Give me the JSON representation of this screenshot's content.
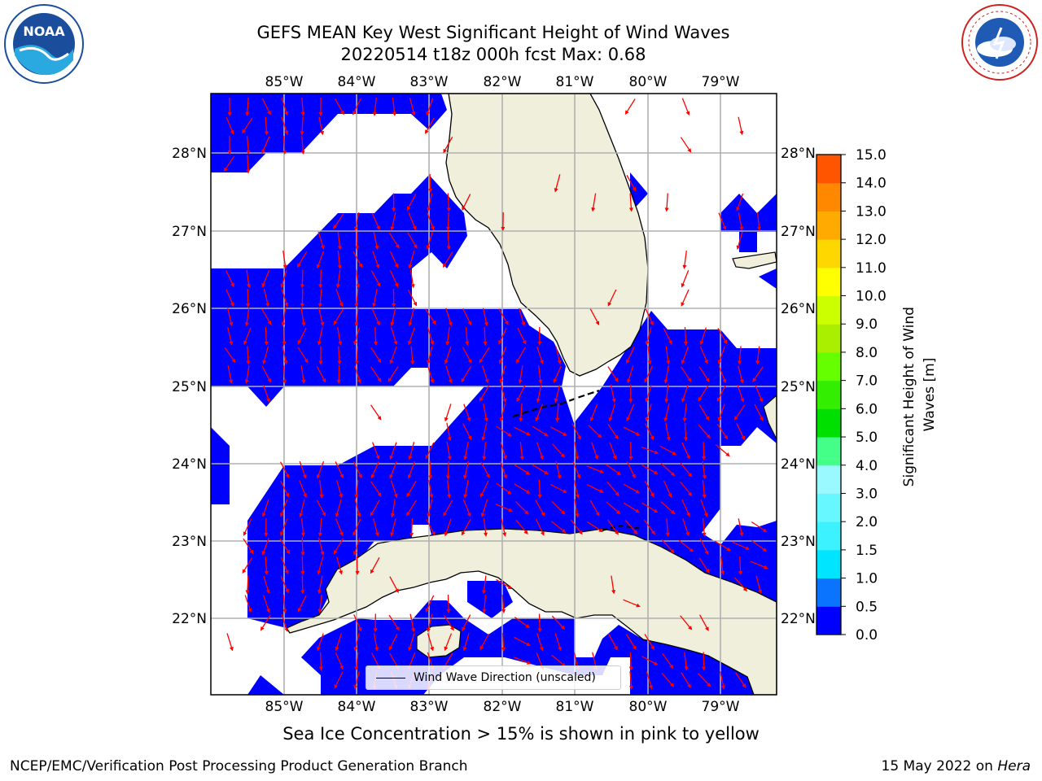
{
  "title": {
    "line1": "GEFS MEAN Key West Significant Height of Wind Waves",
    "line2": "20220514 t18z 000h fcst   Max: 0.68"
  },
  "axes": {
    "lon_labels": [
      "85°W",
      "84°W",
      "83°W",
      "82°W",
      "81°W",
      "80°W",
      "79°W"
    ],
    "lat_labels": [
      "28°N",
      "27°N",
      "26°N",
      "25°N",
      "24°N",
      "23°N",
      "22°N"
    ]
  },
  "legend": {
    "label": "Wind Wave Direction (unscaled)"
  },
  "colorbar": {
    "label": "Significant Height of Wind Waves [m]",
    "ticks": [
      "15.0",
      "14.0",
      "13.0",
      "12.0",
      "11.0",
      "10.0",
      "9.0",
      "8.0",
      "7.0",
      "6.0",
      "5.0",
      "4.0",
      "3.0",
      "2.0",
      "1.5",
      "1.0",
      "0.5",
      "0.0"
    ],
    "colors": [
      "#0000ff",
      "#0a74ff",
      "#00e5ff",
      "#3cf2ff",
      "#66f7ff",
      "#99f9ff",
      "#44ff88",
      "#00e000",
      "#33ee00",
      "#66ff00",
      "#aaee00",
      "#ccff00",
      "#ffff00",
      "#ffd700",
      "#ffaa00",
      "#ff8800",
      "#ff5500",
      "#ff2a00",
      "#ff0000"
    ]
  },
  "colors": {
    "wave_fill": "#0000ff",
    "land": "#efefdc",
    "arrow": "#ff0000",
    "grid": "#b0b0b0"
  },
  "note": "Sea Ice Concentration > 15% is shown in pink to yellow",
  "footer": {
    "left": "NCEP/EMC/Verification Post Processing Product Generation Branch",
    "date": "15 May 2022 on",
    "host": "Hera"
  },
  "logos": {
    "left": "NOAA",
    "right": "NATIONAL WEATHER SERVICE"
  }
}
